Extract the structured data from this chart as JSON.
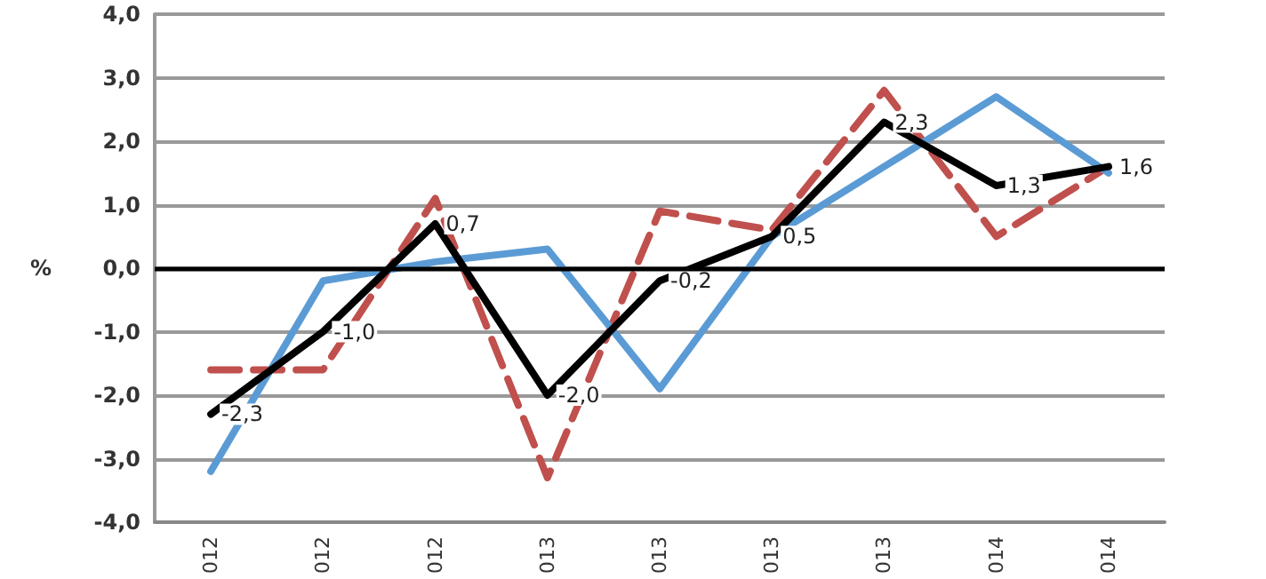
{
  "chart_data": {
    "type": "line",
    "ylabel": "%",
    "categories": [
      "012",
      "012",
      "012",
      "013",
      "013",
      "013",
      "013",
      "014",
      "014"
    ],
    "series": [
      {
        "color": "#c0504d",
        "line_style": "dashed",
        "values": [
          -1.6,
          -1.6,
          1.1,
          -3.3,
          0.9,
          0.6,
          2.8,
          0.5,
          1.6
        ]
      },
      {
        "color": "#5b9bd5",
        "line_style": "solid",
        "values": [
          -3.2,
          -0.2,
          0.1,
          0.3,
          -1.9,
          0.5,
          1.6,
          2.7,
          1.5
        ]
      },
      {
        "color": "#000000",
        "line_style": "solid",
        "values": [
          -2.3,
          -1.0,
          0.7,
          -2.0,
          -0.2,
          0.5,
          2.3,
          1.3,
          1.6
        ],
        "value_labels": [
          "-2,3",
          "-1,0",
          "0,7",
          "-2,0",
          "-0,2",
          "0,5",
          "2,3",
          "1,3",
          "1,6"
        ]
      }
    ],
    "ylim": [
      -4,
      4
    ],
    "yticks": [
      {
        "value": -4,
        "label": "-4,0"
      },
      {
        "value": -3,
        "label": "-3,0"
      },
      {
        "value": -2,
        "label": "-2,0"
      },
      {
        "value": -1,
        "label": "-1,0"
      },
      {
        "value": 0,
        "label": "0,0"
      },
      {
        "value": 1,
        "label": "1,0"
      },
      {
        "value": 2,
        "label": "2,0"
      },
      {
        "value": 3,
        "label": "3,0"
      },
      {
        "value": 4,
        "label": "4,0"
      }
    ],
    "ref_lines": [
      {
        "axis": "y",
        "value": 0,
        "color": "#000000"
      }
    ],
    "grid": "y",
    "marker": "none"
  }
}
